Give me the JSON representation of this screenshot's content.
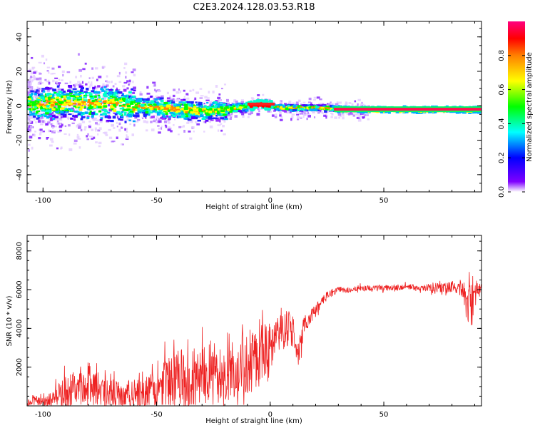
{
  "title": "C2E3.2024.128.03.53.R18",
  "chart_data": [
    {
      "type": "heatmap",
      "xlabel": "Height of straight line (km)",
      "ylabel": "Frequency (Hz)",
      "xlim": [
        -107,
        93
      ],
      "ylim": [
        -50,
        49
      ],
      "x_ticks": [
        -100,
        -50,
        0,
        50
      ],
      "y_ticks": [
        -40,
        -20,
        0,
        20,
        40
      ],
      "grid": false,
      "description_of_ridge": {
        "x": [
          -107,
          -90,
          -70,
          -50,
          -40,
          -30,
          -20,
          -10,
          -5,
          5,
          20,
          40,
          60,
          80,
          93
        ],
        "center_hz": [
          1,
          2,
          1,
          -1,
          -2,
          -3,
          -2,
          0,
          1,
          -1,
          -1,
          -2,
          -2,
          -2,
          -2
        ]
      },
      "colorbar": {
        "label": "Normalized spectral amplitude",
        "ticks": [
          0.0,
          0.2,
          0.4,
          0.6,
          0.8
        ],
        "range": [
          0,
          1
        ],
        "colormap": [
          "#ffffff",
          "#7f00ff",
          "#0000ff",
          "#00ffff",
          "#00ff00",
          "#ffff00",
          "#ff8000",
          "#ff0000",
          "#ff0080"
        ]
      }
    },
    {
      "type": "line",
      "xlabel": "Height of straight line (km)",
      "ylabel": "SNR (10 * v/v)",
      "xlim": [
        -107,
        93
      ],
      "ylim": [
        0,
        8800
      ],
      "x_ticks": [
        -100,
        -50,
        0,
        50
      ],
      "y_ticks": [
        2000,
        4000,
        6000,
        8000
      ],
      "grid": false,
      "series": [
        {
          "color": "#ee2222",
          "x": [
            -107,
            -100,
            -95,
            -90,
            -85,
            -80,
            -75,
            -70,
            -65,
            -60,
            -55,
            -50,
            -45,
            -40,
            -35,
            -30,
            -25,
            -20,
            -15,
            -10,
            -5,
            0,
            5,
            10,
            12,
            15,
            20,
            25,
            30,
            35,
            40,
            45,
            50,
            55,
            60,
            65,
            70,
            75,
            80,
            85,
            87,
            88,
            90,
            93
          ],
          "base": [
            200,
            250,
            350,
            600,
            900,
            800,
            900,
            700,
            500,
            500,
            550,
            900,
            1300,
            1400,
            1600,
            1500,
            1700,
            1600,
            2000,
            2200,
            2500,
            3200,
            3800,
            3900,
            2500,
            4200,
            5000,
            5700,
            6000,
            6000,
            6100,
            6050,
            6100,
            6100,
            6150,
            6100,
            6100,
            6100,
            6150,
            6000,
            5000,
            6000,
            6100,
            6000
          ],
          "amp": [
            300,
            400,
            500,
            1000,
            1000,
            900,
            900,
            700,
            700,
            900,
            900,
            1100,
            1300,
            1500,
            1700,
            1500,
            1700,
            1400,
            1600,
            1700,
            1600,
            1200,
            900,
            1000,
            700,
            500,
            300,
            200,
            150,
            150,
            150,
            150,
            150,
            150,
            150,
            150,
            200,
            250,
            300,
            400,
            1400,
            1500,
            600,
            300
          ]
        }
      ]
    }
  ]
}
